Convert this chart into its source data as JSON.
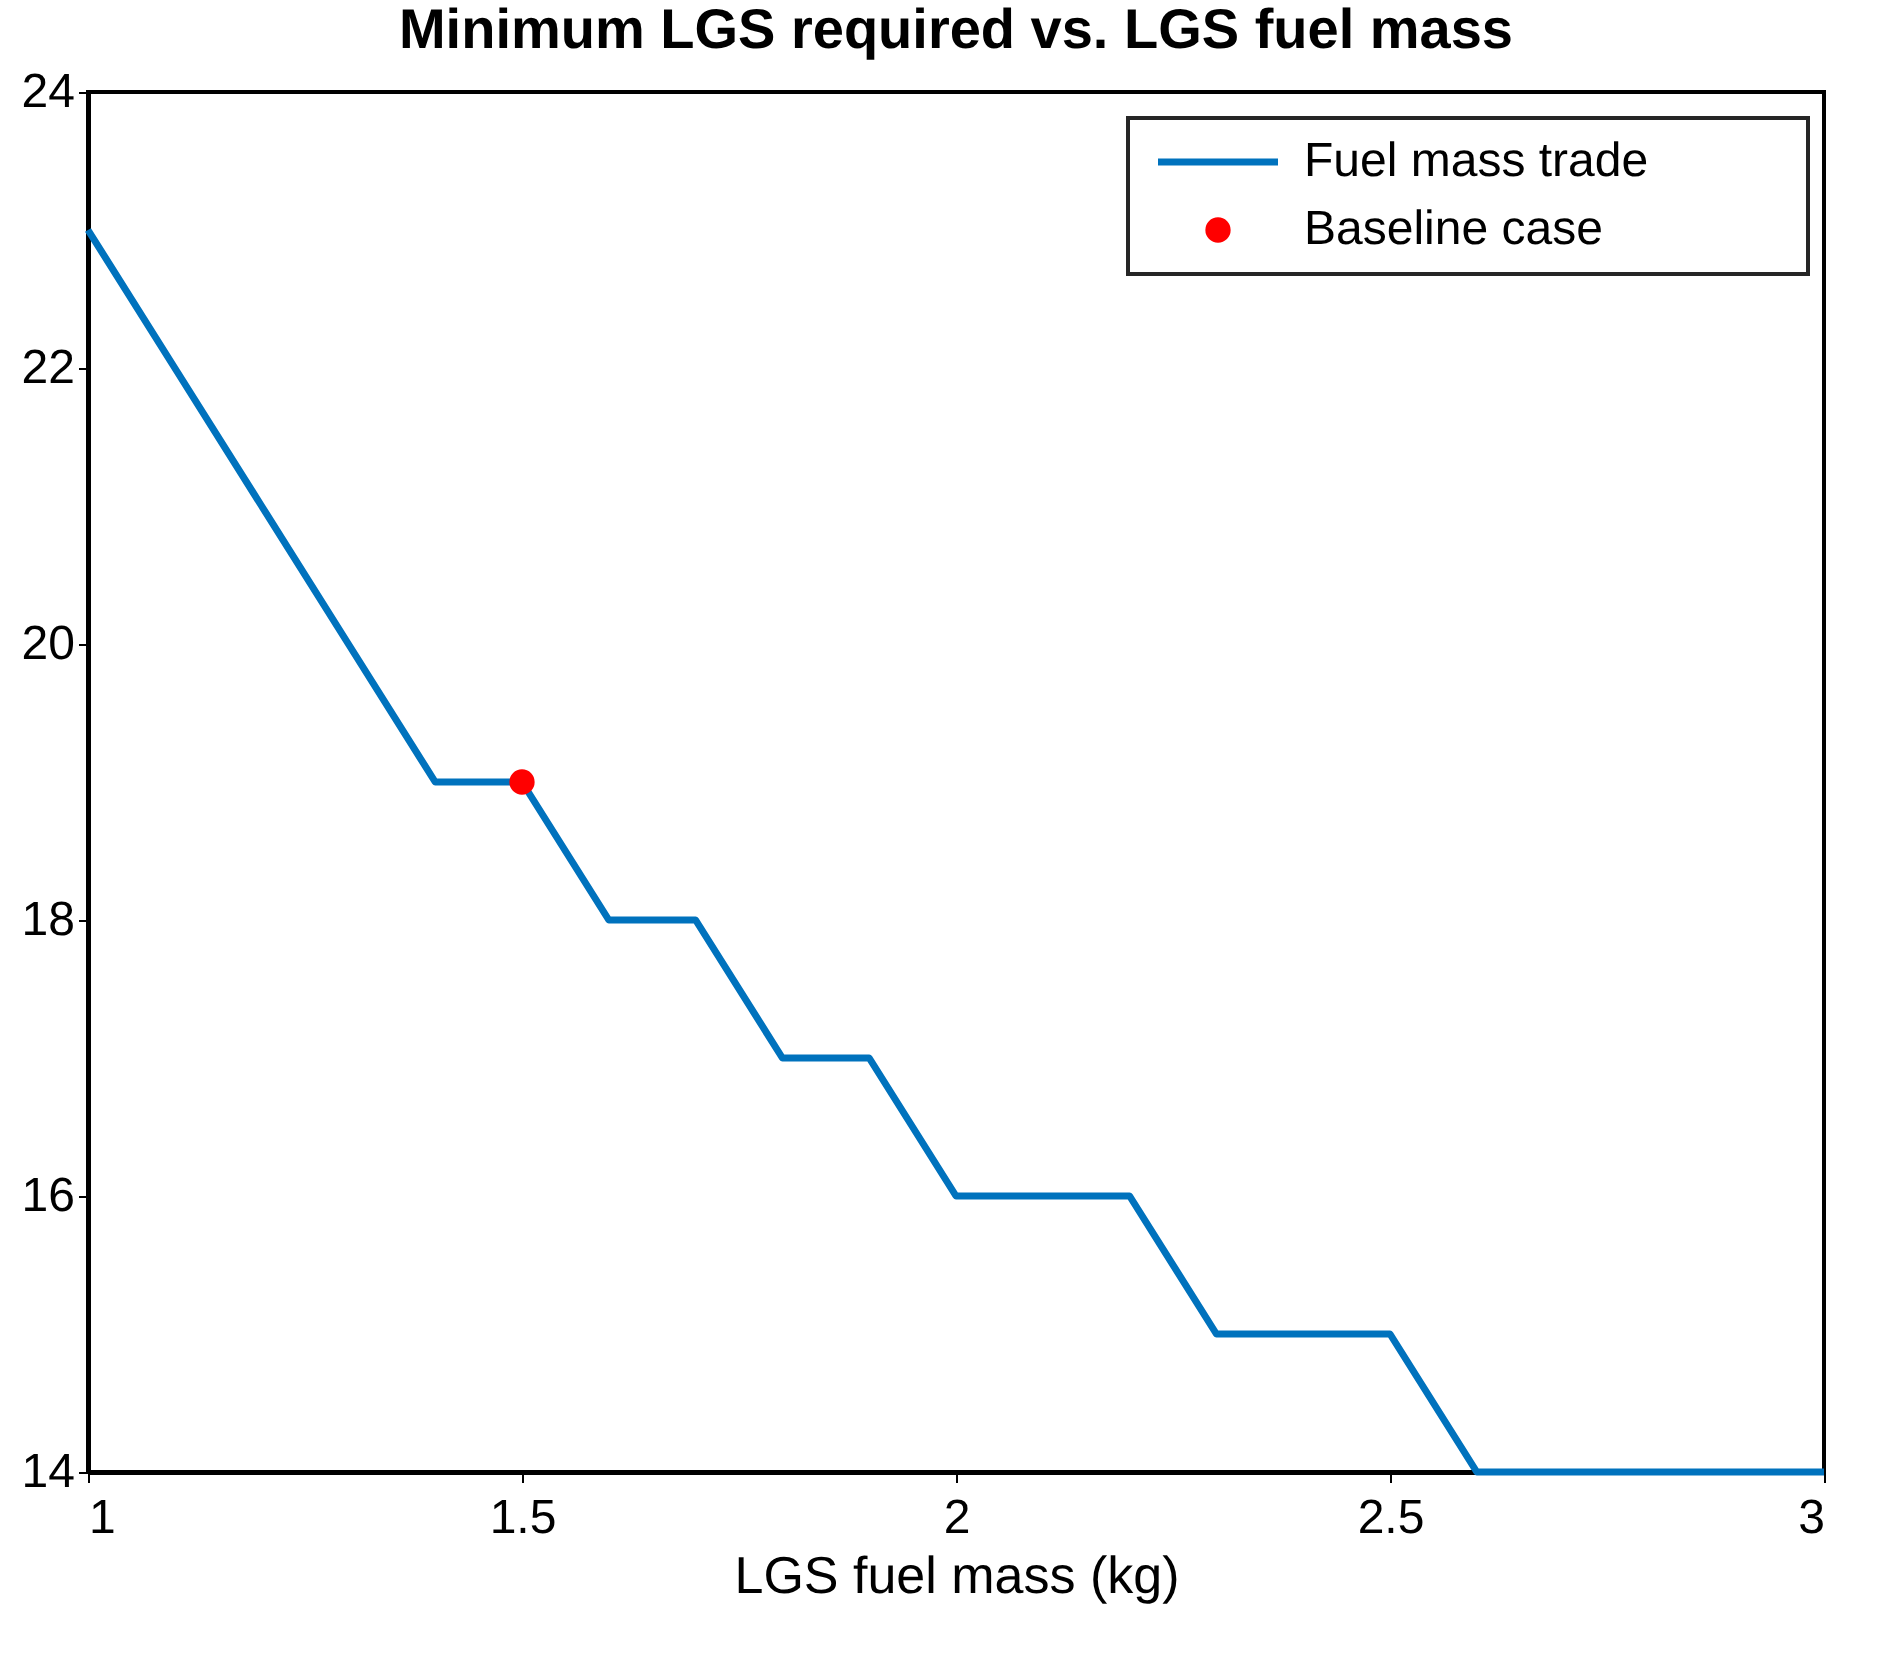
{
  "chart_data": {
    "type": "line",
    "title": "Minimum LGS required vs. LGS fuel mass",
    "xlabel": "LGS fuel mass (kg)",
    "series": [
      {
        "name": "Fuel mass trade",
        "color": "#0072bd",
        "x": [
          1.0,
          1.1,
          1.2,
          1.3,
          1.4,
          1.5,
          1.6,
          1.7,
          1.8,
          1.9,
          2.0,
          2.1,
          2.2,
          2.3,
          2.4,
          2.5,
          2.6,
          2.7,
          2.8,
          2.9,
          3.0
        ],
        "values": [
          23,
          22,
          21,
          20,
          19,
          19,
          18,
          18,
          17,
          17,
          16,
          16,
          16,
          15,
          15,
          15,
          14,
          14,
          14,
          14,
          14
        ]
      },
      {
        "name": "Baseline case",
        "type": "scatter",
        "color": "#ff0000",
        "x": [
          1.5
        ],
        "values": [
          19
        ]
      }
    ],
    "xlim": [
      1,
      3
    ],
    "ylim": [
      14,
      24
    ],
    "xticks": [
      1,
      1.5,
      2,
      2.5,
      3
    ],
    "yticks": [
      14,
      16,
      18,
      20,
      22,
      24
    ],
    "grid": false,
    "legend": "top right"
  }
}
